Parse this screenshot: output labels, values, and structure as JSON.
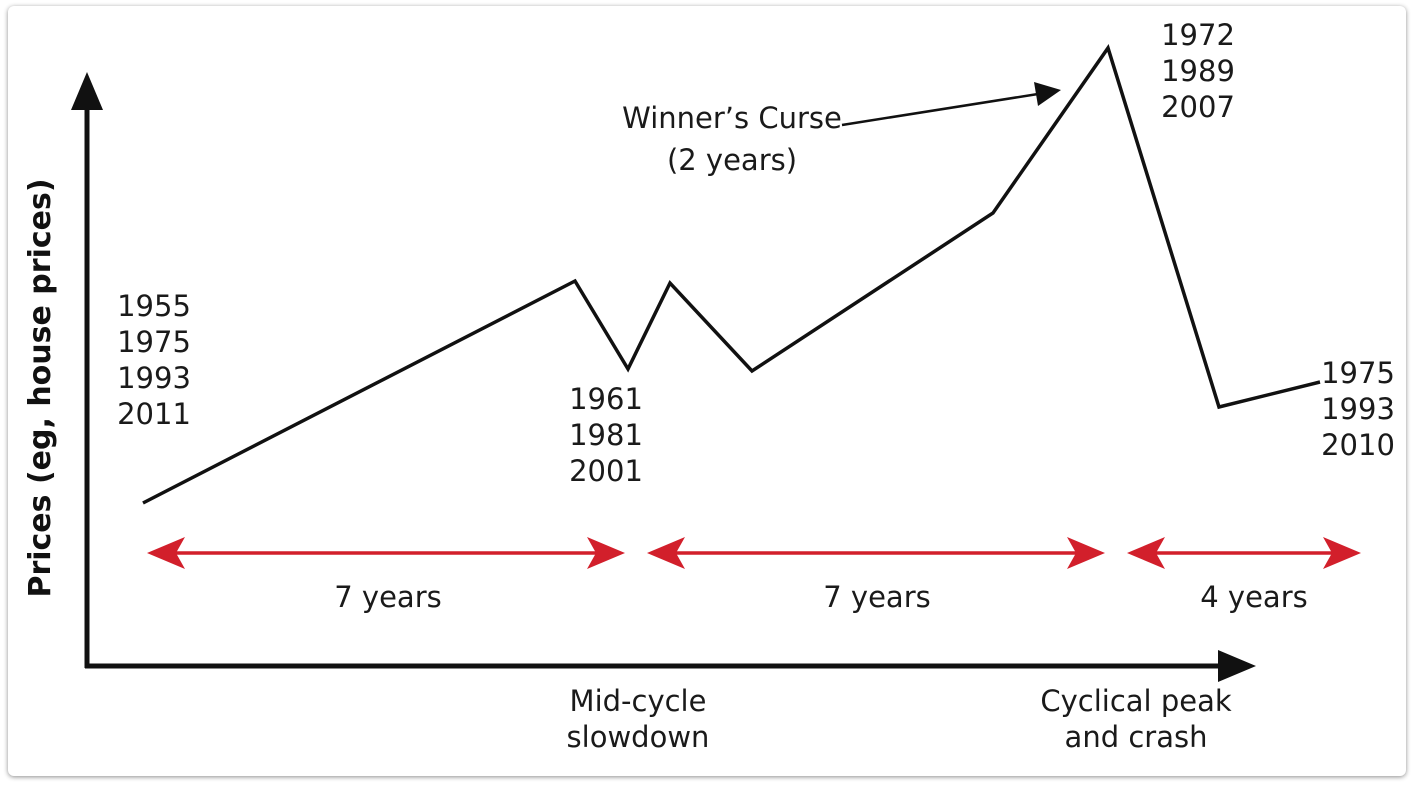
{
  "axes": {
    "y_label": "Prices (eg, house prices)"
  },
  "x_labels": {
    "mid_cycle": [
      "Mid-cycle",
      "slowdown"
    ],
    "peak": [
      "Cyclical peak",
      "and crash"
    ]
  },
  "year_groups": {
    "start": [
      "1955",
      "1975",
      "1993",
      "2011"
    ],
    "mid": [
      "1961",
      "1981",
      "2001"
    ],
    "peak": [
      "1972",
      "1989",
      "2007"
    ],
    "end": [
      "1975",
      "1993",
      "2010"
    ]
  },
  "annotation": {
    "line1": "Winner’s Curse",
    "line2": "(2 years)"
  },
  "periods": [
    "7 years",
    "7 years",
    "4 years"
  ],
  "colors": {
    "line": "#111111",
    "period_arrow": "#d21f2b",
    "axis": "#111111"
  }
}
